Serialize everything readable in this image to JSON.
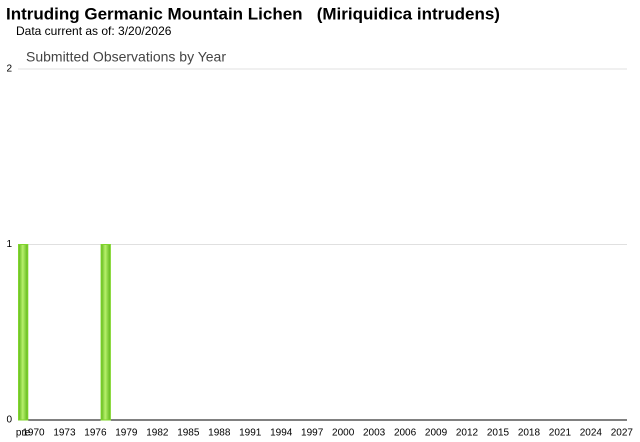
{
  "chart_data": {
    "type": "bar",
    "title": "Intruding Germanic Mountain Lichen   (Miriquidica intrudens)",
    "subtitle": "Data current as of: 3/20/2026",
    "chart_title": "Submitted Observations by Year",
    "categories": [
      "pre",
      "1970",
      null,
      null,
      "1973",
      null,
      null,
      "1976",
      null,
      null,
      "1979",
      null,
      null,
      "1982",
      null,
      null,
      "1985",
      null,
      null,
      "1988",
      null,
      null,
      "1991",
      null,
      null,
      "1994",
      null,
      null,
      "1997",
      null,
      null,
      "2000",
      null,
      null,
      "2003",
      null,
      null,
      "2006",
      null,
      null,
      "2009",
      null,
      null,
      "2012",
      null,
      null,
      "2015",
      null,
      null,
      "2018",
      null,
      null,
      "2021",
      null,
      null,
      "2024",
      null,
      null,
      "2027"
    ],
    "values": [
      1,
      0,
      0,
      0,
      0,
      0,
      0,
      0,
      1,
      0,
      0,
      0,
      0,
      0,
      0,
      0,
      0,
      0,
      0,
      0,
      0,
      0,
      0,
      0,
      0,
      0,
      0,
      0,
      0,
      0,
      0,
      0,
      0,
      0,
      0,
      0,
      0,
      0,
      0,
      0,
      0,
      0,
      0,
      0,
      0,
      0,
      0,
      0,
      0,
      0,
      0,
      0,
      0,
      0,
      0,
      0,
      0,
      0,
      0
    ],
    "color": "#7fd62a",
    "ylim": [
      0,
      2
    ],
    "yticks": [
      0,
      1,
      2
    ],
    "grid": true
  }
}
